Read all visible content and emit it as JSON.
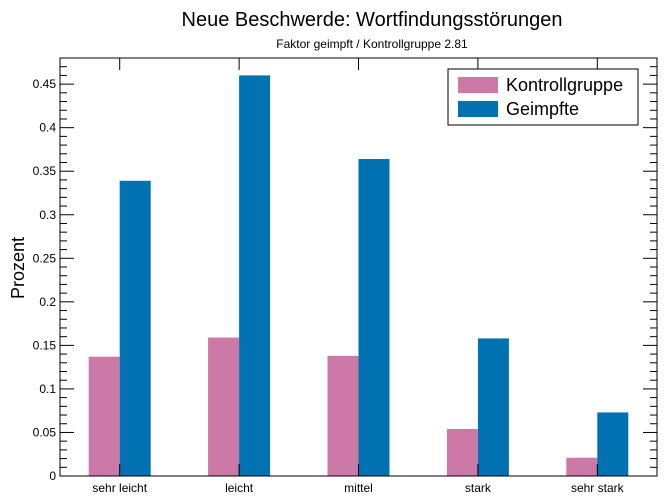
{
  "chart_data": {
    "type": "bar",
    "title": "Neue Beschwerde: Wortfindungsstörungen",
    "subtitle": "Faktor geimpft / Kontrollgruppe 2.81",
    "xlabel": "",
    "ylabel": "Prozent",
    "categories": [
      "sehr leicht",
      "leicht",
      "mittel",
      "stark",
      "sehr stark"
    ],
    "series": [
      {
        "name": "Kontrollgruppe",
        "color": "#cc79a7",
        "values": [
          0.137,
          0.159,
          0.138,
          0.054,
          0.021
        ]
      },
      {
        "name": "Geimpfte",
        "color": "#0072b2",
        "values": [
          0.339,
          0.46,
          0.364,
          0.158,
          0.073
        ]
      }
    ],
    "ylim": [
      0,
      0.48
    ],
    "yticks": [
      0,
      0.05,
      0.1,
      0.15,
      0.2,
      0.25,
      0.3,
      0.35,
      0.4,
      0.45
    ],
    "ytick_labels": [
      "0",
      "0.05",
      "0.1",
      "0.15",
      "0.2",
      "0.25",
      "0.3",
      "0.35",
      "0.4",
      "0.45"
    ],
    "grid": false,
    "legend_position": "top-right"
  }
}
